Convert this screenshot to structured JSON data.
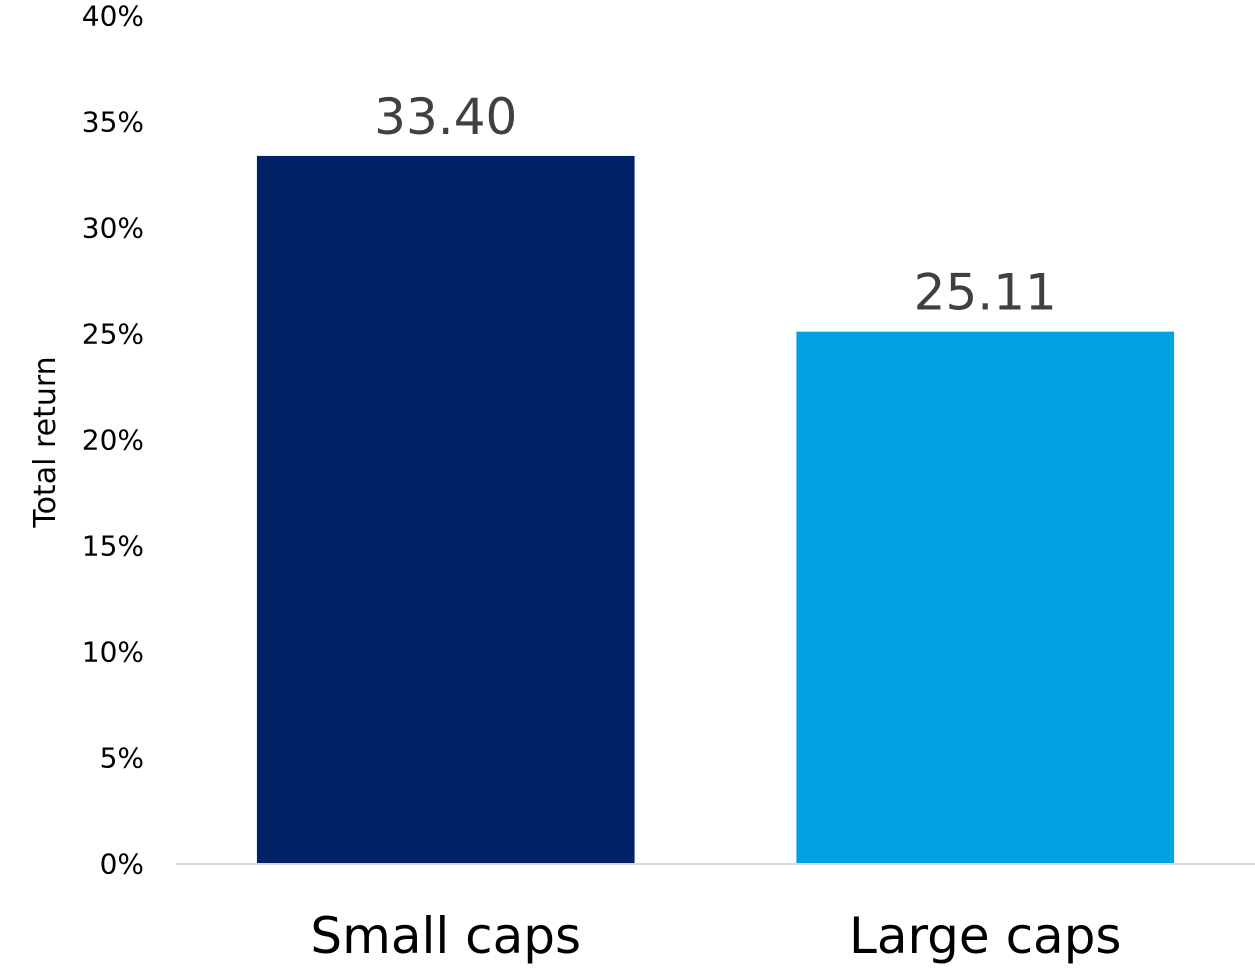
{
  "chart_data": {
    "type": "bar",
    "categories": [
      "Small caps",
      "Large caps"
    ],
    "values": [
      33.4,
      25.11
    ],
    "data_labels": [
      "33.40",
      "25.11"
    ],
    "colors": [
      "#002266",
      "#00A2E1"
    ],
    "title": "",
    "xlabel": "",
    "ylabel": "Total return",
    "ylim": [
      0,
      40
    ],
    "yticks": [
      0,
      5,
      10,
      15,
      20,
      25,
      30,
      35,
      40
    ],
    "ytick_labels": [
      "0%",
      "5%",
      "10%",
      "15%",
      "20%",
      "25%",
      "30%",
      "35%",
      "40%"
    ],
    "grid": false,
    "legend": "none",
    "axis_color": "#d9d9d9"
  }
}
